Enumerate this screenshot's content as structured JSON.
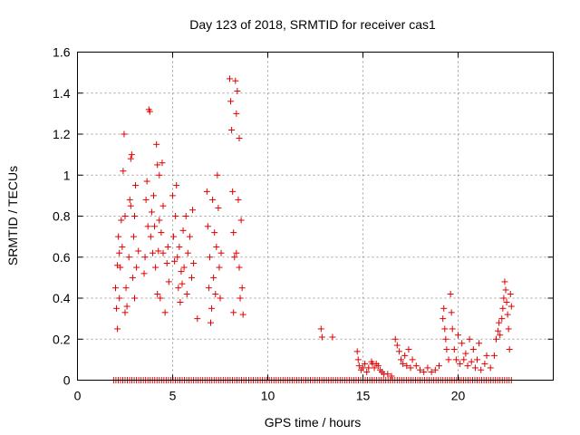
{
  "chart_data": {
    "type": "scatter",
    "title": "Day 123 of 2018, SRMTID for receiver cas1",
    "xlabel": "GPS time / hours",
    "ylabel": "SRMTID / TECUs",
    "xlim": [
      0,
      25
    ],
    "ylim": [
      0,
      1.6
    ],
    "xticks": [
      0,
      5,
      10,
      15,
      20
    ],
    "yticks": [
      0,
      0.2,
      0.4,
      0.6,
      0.8,
      1,
      1.2,
      1.4,
      1.6
    ],
    "xtick_labels": [
      "0",
      "5",
      "10",
      "15",
      "20"
    ],
    "ytick_labels": [
      "0",
      "0.2",
      "0.4",
      "0.6",
      "0.8",
      "1",
      "1.2",
      "1.4",
      "1.6"
    ],
    "grid": true,
    "marker": "+",
    "color": "#e00000",
    "series": [
      {
        "name": "SRMTID",
        "points": [
          [
            2.0,
            0.45
          ],
          [
            2.05,
            0.35
          ],
          [
            2.1,
            0.25
          ],
          [
            2.1,
            0.56
          ],
          [
            2.15,
            0.7
          ],
          [
            2.2,
            0.62
          ],
          [
            2.2,
            0.4
          ],
          [
            2.25,
            0.55
          ],
          [
            2.3,
            0.78
          ],
          [
            2.35,
            0.65
          ],
          [
            2.4,
            1.02
          ],
          [
            2.45,
            1.2
          ],
          [
            2.5,
            0.8
          ],
          [
            2.5,
            0.33
          ],
          [
            2.55,
            0.45
          ],
          [
            2.6,
            0.36
          ],
          [
            2.7,
            0.6
          ],
          [
            2.75,
            0.88
          ],
          [
            2.8,
            1.08
          ],
          [
            2.8,
            0.85
          ],
          [
            2.85,
            1.1
          ],
          [
            2.9,
            0.5
          ],
          [
            2.95,
            0.7
          ],
          [
            3.0,
            0.4
          ],
          [
            3.0,
            0.8
          ],
          [
            3.05,
            0.95
          ],
          [
            3.1,
            0.55
          ],
          [
            3.2,
            0.63
          ],
          [
            3.5,
            0.52
          ],
          [
            3.55,
            0.6
          ],
          [
            3.6,
            0.88
          ],
          [
            3.65,
            0.97
          ],
          [
            3.7,
            0.75
          ],
          [
            3.75,
            1.32
          ],
          [
            3.8,
            1.31
          ],
          [
            3.85,
            0.7
          ],
          [
            3.9,
            0.82
          ],
          [
            3.95,
            0.62
          ],
          [
            4.0,
            0.9
          ],
          [
            4.05,
            0.75
          ],
          [
            4.1,
            0.55
          ],
          [
            4.15,
            1.15
          ],
          [
            4.2,
            1.05
          ],
          [
            4.2,
            0.42
          ],
          [
            4.25,
            0.63
          ],
          [
            4.3,
            1.0
          ],
          [
            4.3,
            0.78
          ],
          [
            4.35,
            0.4
          ],
          [
            4.4,
            0.72
          ],
          [
            4.45,
            1.06
          ],
          [
            4.5,
            0.85
          ],
          [
            4.5,
            0.62
          ],
          [
            4.6,
            0.33
          ],
          [
            4.7,
            0.57
          ],
          [
            4.75,
            0.65
          ],
          [
            4.8,
            0.48
          ],
          [
            5.0,
            0.9
          ],
          [
            5.05,
            0.7
          ],
          [
            5.1,
            0.58
          ],
          [
            5.15,
            0.8
          ],
          [
            5.2,
            0.95
          ],
          [
            5.25,
            0.6
          ],
          [
            5.3,
            0.45
          ],
          [
            5.35,
            0.65
          ],
          [
            5.4,
            0.38
          ],
          [
            5.45,
            0.53
          ],
          [
            5.5,
            0.47
          ],
          [
            5.55,
            0.73
          ],
          [
            5.6,
            0.55
          ],
          [
            5.7,
            0.8
          ],
          [
            5.75,
            0.42
          ],
          [
            5.8,
            0.62
          ],
          [
            5.9,
            0.7
          ],
          [
            6.0,
            0.5
          ],
          [
            6.05,
            0.83
          ],
          [
            6.1,
            0.57
          ],
          [
            6.3,
            0.3
          ],
          [
            6.8,
            0.92
          ],
          [
            6.85,
            0.75
          ],
          [
            6.9,
            0.45
          ],
          [
            6.95,
            0.6
          ],
          [
            7.0,
            0.28
          ],
          [
            7.05,
            0.35
          ],
          [
            7.1,
            0.88
          ],
          [
            7.15,
            0.5
          ],
          [
            7.2,
            0.72
          ],
          [
            7.25,
            0.42
          ],
          [
            7.3,
            0.65
          ],
          [
            7.35,
            1.0
          ],
          [
            7.4,
            0.84
          ],
          [
            7.45,
            0.55
          ],
          [
            7.5,
            0.4
          ],
          [
            7.55,
            0.62
          ],
          [
            8.0,
            1.47
          ],
          [
            8.05,
            1.36
          ],
          [
            8.1,
            1.22
          ],
          [
            8.15,
            0.92
          ],
          [
            8.2,
            0.72
          ],
          [
            8.25,
            0.6
          ],
          [
            8.3,
            1.46
          ],
          [
            8.35,
            1.3
          ],
          [
            8.4,
            1.41
          ],
          [
            8.45,
            0.88
          ],
          [
            8.5,
            1.18
          ],
          [
            8.5,
            0.55
          ],
          [
            8.55,
            0.4
          ],
          [
            8.6,
            0.78
          ],
          [
            8.65,
            0.45
          ],
          [
            8.7,
            0.32
          ],
          [
            8.2,
            0.33
          ],
          [
            8.35,
            0.62
          ],
          [
            12.8,
            0.25
          ],
          [
            12.85,
            0.21
          ],
          [
            13.4,
            0.21
          ],
          [
            14.7,
            0.14
          ],
          [
            14.75,
            0.1
          ],
          [
            14.8,
            0.07
          ],
          [
            14.9,
            0.05
          ],
          [
            15.0,
            0.06
          ],
          [
            15.1,
            0.08
          ],
          [
            15.2,
            0.04
          ],
          [
            15.3,
            0.06
          ],
          [
            15.45,
            0.09
          ],
          [
            15.5,
            0.08
          ],
          [
            15.6,
            0.06
          ],
          [
            15.7,
            0.08
          ],
          [
            15.8,
            0.07
          ],
          [
            15.9,
            0.05
          ],
          [
            16.0,
            0.04
          ],
          [
            16.1,
            0.03
          ],
          [
            16.3,
            0.03
          ],
          [
            16.5,
            0.02
          ],
          [
            16.7,
            0.2
          ],
          [
            16.8,
            0.17
          ],
          [
            16.9,
            0.14
          ],
          [
            17.0,
            0.1
          ],
          [
            17.1,
            0.08
          ],
          [
            17.2,
            0.12
          ],
          [
            17.3,
            0.07
          ],
          [
            17.4,
            0.15
          ],
          [
            17.5,
            0.06
          ],
          [
            17.6,
            0.1
          ],
          [
            17.8,
            0.07
          ],
          [
            18.0,
            0.05
          ],
          [
            18.2,
            0.04
          ],
          [
            18.4,
            0.06
          ],
          [
            18.6,
            0.04
          ],
          [
            18.8,
            0.05
          ],
          [
            19.0,
            0.07
          ],
          [
            19.2,
            0.3
          ],
          [
            19.25,
            0.35
          ],
          [
            19.3,
            0.25
          ],
          [
            19.35,
            0.2
          ],
          [
            19.4,
            0.15
          ],
          [
            19.5,
            0.1
          ],
          [
            19.6,
            0.42
          ],
          [
            19.65,
            0.33
          ],
          [
            19.7,
            0.25
          ],
          [
            19.8,
            0.15
          ],
          [
            19.9,
            0.1
          ],
          [
            20.0,
            0.22
          ],
          [
            20.1,
            0.08
          ],
          [
            20.2,
            0.18
          ],
          [
            20.3,
            0.1
          ],
          [
            20.4,
            0.13
          ],
          [
            20.5,
            0.07
          ],
          [
            20.6,
            0.2
          ],
          [
            20.7,
            0.09
          ],
          [
            20.8,
            0.15
          ],
          [
            20.9,
            0.06
          ],
          [
            21.0,
            0.1
          ],
          [
            21.1,
            0.18
          ],
          [
            21.2,
            0.05
          ],
          [
            21.4,
            0.08
          ],
          [
            21.5,
            0.12
          ],
          [
            21.7,
            0.06
          ],
          [
            21.9,
            0.12
          ],
          [
            22.0,
            0.2
          ],
          [
            22.1,
            0.24
          ],
          [
            22.15,
            0.28
          ],
          [
            22.2,
            0.22
          ],
          [
            22.3,
            0.3
          ],
          [
            22.35,
            0.35
          ],
          [
            22.4,
            0.4
          ],
          [
            22.45,
            0.48
          ],
          [
            22.5,
            0.44
          ],
          [
            22.55,
            0.38
          ],
          [
            22.6,
            0.32
          ],
          [
            22.65,
            0.25
          ],
          [
            22.7,
            0.15
          ],
          [
            22.75,
            0.42
          ],
          [
            22.8,
            0.36
          ]
        ],
        "zero_band_ranges": [
          [
            1.9,
            8.95
          ],
          [
            9.0,
            22.9
          ]
        ]
      }
    ]
  }
}
